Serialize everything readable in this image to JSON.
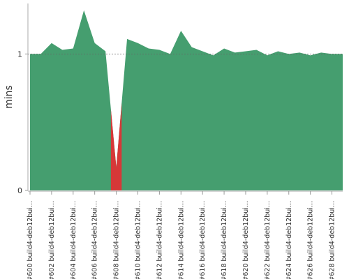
{
  "chart_data": {
    "type": "area",
    "y_label": "mins",
    "categories": [
      "#600 build4-deb12bui...",
      null,
      "#602 build4-deb12bui...",
      null,
      "#604 build4-deb12bui...",
      null,
      "#606 build4-deb12bui...",
      null,
      "#608 build4-deb12bui...",
      null,
      "#610 build4-deb12bui...",
      null,
      "#612 build4-deb12bui...",
      null,
      "#614 build4-deb12bui...",
      null,
      "#616 build4-deb12bui...",
      null,
      "#618 build4-deb12bui...",
      null,
      "#620 build4-deb12bui...",
      null,
      "#622 build4-deb12bui...",
      null,
      "#624 build4-deb12bui...",
      null,
      "#626 build4-deb12bui...",
      null,
      "#628 build4-deb12bui...",
      null
    ],
    "series": [
      {
        "color": "#459e6f",
        "values": [
          1.0,
          1.0,
          1.08,
          1.03,
          1.04,
          1.32,
          1.08,
          1.02,
          0.17,
          1.11,
          1.08,
          1.04,
          1.03,
          1.0,
          1.17,
          1.05,
          1.02,
          0.99,
          1.04,
          1.01,
          1.02,
          1.03,
          0.99,
          1.02,
          1.0,
          1.01,
          0.99,
          1.01,
          1.0,
          1.0
        ],
        "point_colors": [
          "#459e6f",
          "#459e6f",
          "#459e6f",
          "#459e6f",
          "#459e6f",
          "#459e6f",
          "#459e6f",
          "#459e6f",
          "#d63838",
          "#459e6f",
          "#459e6f",
          "#459e6f",
          "#459e6f",
          "#459e6f",
          "#459e6f",
          "#459e6f",
          "#459e6f",
          "#459e6f",
          "#459e6f",
          "#459e6f",
          "#459e6f",
          "#459e6f",
          "#459e6f",
          "#459e6f",
          "#459e6f",
          "#459e6f",
          "#459e6f",
          "#459e6f",
          "#459e6f",
          "#459e6f"
        ]
      }
    ],
    "ylim": [
      0,
      1.37
    ],
    "yticks": [
      0,
      1
    ],
    "grid": true
  }
}
